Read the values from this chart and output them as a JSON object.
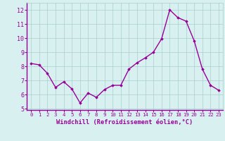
{
  "x": [
    0,
    1,
    2,
    3,
    4,
    5,
    6,
    7,
    8,
    9,
    10,
    11,
    12,
    13,
    14,
    15,
    16,
    17,
    18,
    19,
    20,
    21,
    22,
    23
  ],
  "y": [
    8.2,
    8.1,
    7.5,
    6.5,
    6.9,
    6.4,
    5.4,
    6.1,
    5.8,
    6.35,
    6.65,
    6.65,
    7.8,
    8.25,
    8.6,
    9.0,
    9.95,
    12.0,
    11.45,
    11.2,
    9.8,
    7.8,
    6.65,
    6.3
  ],
  "line_color": "#990099",
  "marker": "D",
  "marker_size": 1.8,
  "background_color": "#d8f0f0",
  "grid_color": "#aacece",
  "xlabel": "Windchill (Refroidissement éolien,°C)",
  "xlabel_color": "#990099",
  "tick_color": "#990099",
  "ylim": [
    4.9,
    12.5
  ],
  "yticks": [
    5,
    6,
    7,
    8,
    9,
    10,
    11,
    12
  ],
  "xlim": [
    -0.5,
    23.5
  ],
  "xticks": [
    0,
    1,
    2,
    3,
    4,
    5,
    6,
    7,
    8,
    9,
    10,
    11,
    12,
    13,
    14,
    15,
    16,
    17,
    18,
    19,
    20,
    21,
    22,
    23
  ],
  "xtick_labels": [
    "0",
    "1",
    "2",
    "3",
    "4",
    "5",
    "6",
    "7",
    "8",
    "9",
    "10",
    "11",
    "12",
    "13",
    "14",
    "15",
    "16",
    "17",
    "18",
    "19",
    "20",
    "21",
    "22",
    "23"
  ],
  "spine_color": "#990099",
  "line_width": 1.0,
  "tick_fontsize": 5.2,
  "ytick_fontsize": 6.0,
  "xlabel_fontsize": 6.2
}
